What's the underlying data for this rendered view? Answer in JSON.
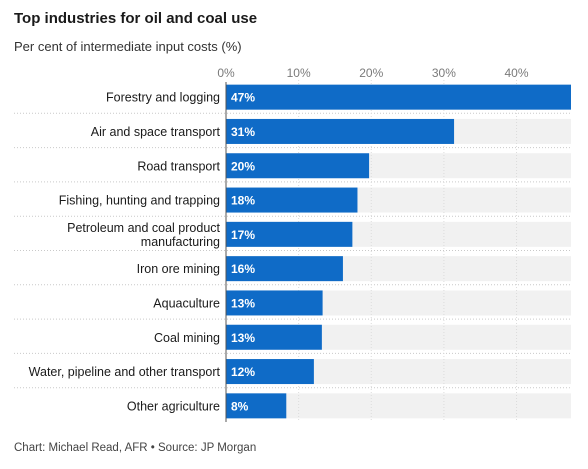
{
  "chart_data": {
    "type": "bar",
    "orientation": "horizontal",
    "title": "Top industries for oil and coal use",
    "subtitle": "Per cent of intermediate input costs (%)",
    "categories": [
      [
        "Forestry and logging"
      ],
      [
        "Air and space transport"
      ],
      [
        "Road transport"
      ],
      [
        "Fishing, hunting and trapping"
      ],
      [
        "Petroleum and coal product",
        "manufacturing"
      ],
      [
        "Iron ore mining"
      ],
      [
        "Aquaculture"
      ],
      [
        "Coal mining"
      ],
      [
        "Water, pipeline and other transport"
      ],
      [
        "Other agriculture"
      ]
    ],
    "values": [
      47,
      31,
      20,
      18,
      17,
      16,
      13,
      13,
      12,
      8
    ],
    "plotted_values": [
      47.5,
      31.4,
      19.7,
      18.1,
      17.4,
      16.1,
      13.3,
      13.2,
      12.1,
      8.3
    ],
    "data_labels": [
      "47%",
      "31%",
      "20%",
      "18%",
      "17%",
      "16%",
      "13%",
      "13%",
      "12%",
      "8%"
    ],
    "x_ticks": [
      0,
      10,
      20,
      30,
      40
    ],
    "x_tick_labels": [
      "0%",
      "10%",
      "20%",
      "30%",
      "40%"
    ],
    "xlim": [
      0,
      47.5
    ],
    "bar_color": "#0f6bc7",
    "track_color": "#f1f1f1",
    "grid": true,
    "source": "Chart: Michael Read, AFR • Source: JP Morgan"
  }
}
